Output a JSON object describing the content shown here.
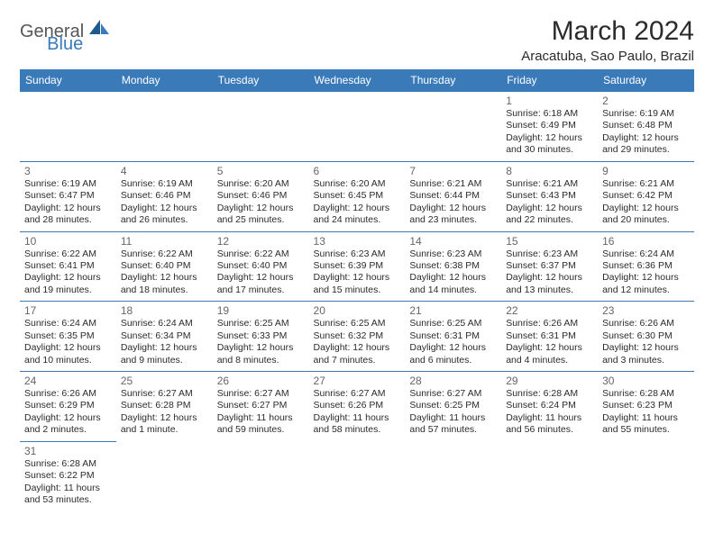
{
  "logo": {
    "general": "General",
    "blue": "Blue"
  },
  "title": "March 2024",
  "location": "Aracatuba, Sao Paulo, Brazil",
  "colors": {
    "header_bg": "#3a7ab8",
    "header_text": "#ffffff",
    "border": "#3a7ab8",
    "daynum": "#666666",
    "text": "#2b2b2b"
  },
  "dayHeaders": [
    "Sunday",
    "Monday",
    "Tuesday",
    "Wednesday",
    "Thursday",
    "Friday",
    "Saturday"
  ],
  "weeks": [
    [
      null,
      null,
      null,
      null,
      null,
      {
        "n": "1",
        "sr": "6:18 AM",
        "ss": "6:49 PM",
        "dl": "12 hours and 30 minutes."
      },
      {
        "n": "2",
        "sr": "6:19 AM",
        "ss": "6:48 PM",
        "dl": "12 hours and 29 minutes."
      }
    ],
    [
      {
        "n": "3",
        "sr": "6:19 AM",
        "ss": "6:47 PM",
        "dl": "12 hours and 28 minutes."
      },
      {
        "n": "4",
        "sr": "6:19 AM",
        "ss": "6:46 PM",
        "dl": "12 hours and 26 minutes."
      },
      {
        "n": "5",
        "sr": "6:20 AM",
        "ss": "6:46 PM",
        "dl": "12 hours and 25 minutes."
      },
      {
        "n": "6",
        "sr": "6:20 AM",
        "ss": "6:45 PM",
        "dl": "12 hours and 24 minutes."
      },
      {
        "n": "7",
        "sr": "6:21 AM",
        "ss": "6:44 PM",
        "dl": "12 hours and 23 minutes."
      },
      {
        "n": "8",
        "sr": "6:21 AM",
        "ss": "6:43 PM",
        "dl": "12 hours and 22 minutes."
      },
      {
        "n": "9",
        "sr": "6:21 AM",
        "ss": "6:42 PM",
        "dl": "12 hours and 20 minutes."
      }
    ],
    [
      {
        "n": "10",
        "sr": "6:22 AM",
        "ss": "6:41 PM",
        "dl": "12 hours and 19 minutes."
      },
      {
        "n": "11",
        "sr": "6:22 AM",
        "ss": "6:40 PM",
        "dl": "12 hours and 18 minutes."
      },
      {
        "n": "12",
        "sr": "6:22 AM",
        "ss": "6:40 PM",
        "dl": "12 hours and 17 minutes."
      },
      {
        "n": "13",
        "sr": "6:23 AM",
        "ss": "6:39 PM",
        "dl": "12 hours and 15 minutes."
      },
      {
        "n": "14",
        "sr": "6:23 AM",
        "ss": "6:38 PM",
        "dl": "12 hours and 14 minutes."
      },
      {
        "n": "15",
        "sr": "6:23 AM",
        "ss": "6:37 PM",
        "dl": "12 hours and 13 minutes."
      },
      {
        "n": "16",
        "sr": "6:24 AM",
        "ss": "6:36 PM",
        "dl": "12 hours and 12 minutes."
      }
    ],
    [
      {
        "n": "17",
        "sr": "6:24 AM",
        "ss": "6:35 PM",
        "dl": "12 hours and 10 minutes."
      },
      {
        "n": "18",
        "sr": "6:24 AM",
        "ss": "6:34 PM",
        "dl": "12 hours and 9 minutes."
      },
      {
        "n": "19",
        "sr": "6:25 AM",
        "ss": "6:33 PM",
        "dl": "12 hours and 8 minutes."
      },
      {
        "n": "20",
        "sr": "6:25 AM",
        "ss": "6:32 PM",
        "dl": "12 hours and 7 minutes."
      },
      {
        "n": "21",
        "sr": "6:25 AM",
        "ss": "6:31 PM",
        "dl": "12 hours and 6 minutes."
      },
      {
        "n": "22",
        "sr": "6:26 AM",
        "ss": "6:31 PM",
        "dl": "12 hours and 4 minutes."
      },
      {
        "n": "23",
        "sr": "6:26 AM",
        "ss": "6:30 PM",
        "dl": "12 hours and 3 minutes."
      }
    ],
    [
      {
        "n": "24",
        "sr": "6:26 AM",
        "ss": "6:29 PM",
        "dl": "12 hours and 2 minutes."
      },
      {
        "n": "25",
        "sr": "6:27 AM",
        "ss": "6:28 PM",
        "dl": "12 hours and 1 minute."
      },
      {
        "n": "26",
        "sr": "6:27 AM",
        "ss": "6:27 PM",
        "dl": "11 hours and 59 minutes."
      },
      {
        "n": "27",
        "sr": "6:27 AM",
        "ss": "6:26 PM",
        "dl": "11 hours and 58 minutes."
      },
      {
        "n": "28",
        "sr": "6:27 AM",
        "ss": "6:25 PM",
        "dl": "11 hours and 57 minutes."
      },
      {
        "n": "29",
        "sr": "6:28 AM",
        "ss": "6:24 PM",
        "dl": "11 hours and 56 minutes."
      },
      {
        "n": "30",
        "sr": "6:28 AM",
        "ss": "6:23 PM",
        "dl": "11 hours and 55 minutes."
      }
    ],
    [
      {
        "n": "31",
        "sr": "6:28 AM",
        "ss": "6:22 PM",
        "dl": "11 hours and 53 minutes."
      },
      null,
      null,
      null,
      null,
      null,
      null
    ]
  ],
  "labels": {
    "sunrise": "Sunrise:",
    "sunset": "Sunset:",
    "daylight": "Daylight:"
  }
}
